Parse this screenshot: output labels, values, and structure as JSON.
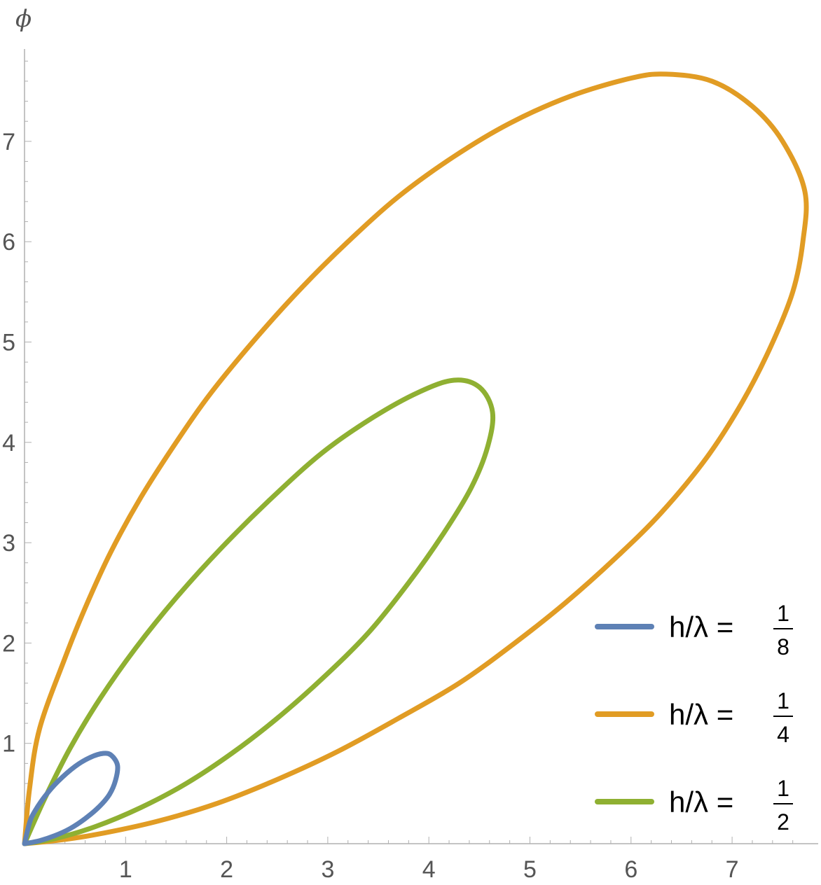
{
  "chart_data": {
    "type": "line",
    "title": "",
    "xlabel": "",
    "ylabel": "ϕ",
    "xlim": [
      0,
      7.8
    ],
    "ylim": [
      0,
      7.85
    ],
    "x_ticks": [
      "1",
      "2",
      "3",
      "4",
      "5",
      "6",
      "7"
    ],
    "y_ticks": [
      "1",
      "2",
      "3",
      "4",
      "5",
      "6",
      "7"
    ],
    "grid": false,
    "legend_position": "bottom-right",
    "series": [
      {
        "name": "h/λ = 1/8",
        "legend_lhs": "h/λ =",
        "legend_num": "1",
        "legend_den": "8",
        "color": "#5E81B5",
        "points": [
          [
            0,
            0
          ],
          [
            0.05,
            0.21
          ],
          [
            0.1,
            0.32
          ],
          [
            0.2,
            0.47
          ],
          [
            0.33,
            0.62
          ],
          [
            0.5,
            0.77
          ],
          [
            0.65,
            0.86
          ],
          [
            0.78,
            0.9
          ],
          [
            0.86,
            0.88
          ],
          [
            0.92,
            0.78
          ],
          [
            0.9,
            0.63
          ],
          [
            0.84,
            0.49
          ],
          [
            0.74,
            0.37
          ],
          [
            0.6,
            0.25
          ],
          [
            0.45,
            0.15
          ],
          [
            0.3,
            0.08
          ],
          [
            0.15,
            0.03
          ],
          [
            0,
            0
          ]
        ]
      },
      {
        "name": "h/λ = 1/4",
        "legend_lhs": "h/λ =",
        "legend_num": "1",
        "legend_den": "4",
        "color": "#E19C24",
        "points": [
          [
            0,
            0
          ],
          [
            0.05,
            0.55
          ],
          [
            0.15,
            1.15
          ],
          [
            0.4,
            1.85
          ],
          [
            0.6,
            2.35
          ],
          [
            0.85,
            2.9
          ],
          [
            1.15,
            3.45
          ],
          [
            1.5,
            4.0
          ],
          [
            1.85,
            4.5
          ],
          [
            2.3,
            5.05
          ],
          [
            2.75,
            5.55
          ],
          [
            3.2,
            6.0
          ],
          [
            3.7,
            6.45
          ],
          [
            4.25,
            6.85
          ],
          [
            4.8,
            7.18
          ],
          [
            5.4,
            7.45
          ],
          [
            6.0,
            7.63
          ],
          [
            6.35,
            7.67
          ],
          [
            6.8,
            7.6
          ],
          [
            7.2,
            7.35
          ],
          [
            7.5,
            7.0
          ],
          [
            7.72,
            6.5
          ],
          [
            7.7,
            6.0
          ],
          [
            7.6,
            5.5
          ],
          [
            7.38,
            4.95
          ],
          [
            7.1,
            4.4
          ],
          [
            6.75,
            3.85
          ],
          [
            6.3,
            3.3
          ],
          [
            5.85,
            2.85
          ],
          [
            5.35,
            2.4
          ],
          [
            4.85,
            2.0
          ],
          [
            4.3,
            1.6
          ],
          [
            3.7,
            1.25
          ],
          [
            3.1,
            0.92
          ],
          [
            2.5,
            0.64
          ],
          [
            1.9,
            0.4
          ],
          [
            1.3,
            0.22
          ],
          [
            0.7,
            0.09
          ],
          [
            0.3,
            0.03
          ],
          [
            0,
            0
          ]
        ]
      },
      {
        "name": "h/λ = 1/2",
        "legend_lhs": "h/λ =",
        "legend_num": "1",
        "legend_den": "2",
        "color": "#8FB032",
        "points": [
          [
            0,
            0
          ],
          [
            0.2,
            0.45
          ],
          [
            0.45,
            0.95
          ],
          [
            0.75,
            1.45
          ],
          [
            1.1,
            1.95
          ],
          [
            1.5,
            2.45
          ],
          [
            1.95,
            2.95
          ],
          [
            2.45,
            3.45
          ],
          [
            2.95,
            3.9
          ],
          [
            3.45,
            4.25
          ],
          [
            3.9,
            4.5
          ],
          [
            4.25,
            4.62
          ],
          [
            4.5,
            4.55
          ],
          [
            4.63,
            4.3
          ],
          [
            4.58,
            3.95
          ],
          [
            4.42,
            3.55
          ],
          [
            4.15,
            3.1
          ],
          [
            3.8,
            2.6
          ],
          [
            3.4,
            2.1
          ],
          [
            2.95,
            1.65
          ],
          [
            2.5,
            1.25
          ],
          [
            2.05,
            0.9
          ],
          [
            1.6,
            0.6
          ],
          [
            1.15,
            0.36
          ],
          [
            0.7,
            0.17
          ],
          [
            0.3,
            0.05
          ],
          [
            0,
            0
          ]
        ]
      }
    ]
  }
}
